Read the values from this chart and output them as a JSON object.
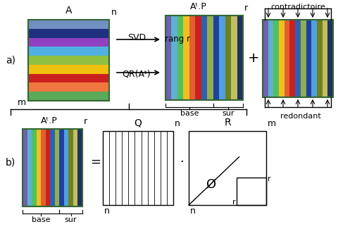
{
  "bg_color": "#ffffff",
  "matrix_A_colors": [
    "#5aaa5a",
    "#f07840",
    "#cc2020",
    "#f0c010",
    "#90c040",
    "#50b0e0",
    "#9040c0",
    "#203080",
    "#7090c0"
  ],
  "col_colors_AtP": [
    "#7060b0",
    "#60b0d0",
    "#50c060",
    "#f0c020",
    "#e06030",
    "#cc2020",
    "#3060b0",
    "#90b050",
    "#2040a0",
    "#50a0e0",
    "#708020",
    "#c0c060",
    "#203060"
  ],
  "col_colors_plus": [
    "#7060b0",
    "#60b0d0",
    "#50c060",
    "#f0c020",
    "#e06030",
    "#cc2020",
    "#3060b0",
    "#90b050",
    "#2040a0",
    "#50a0e0",
    "#708020",
    "#c0c060",
    "#203060"
  ],
  "title_a_label": "A",
  "title_n_label": "n",
  "title_m_label": "m",
  "atP_label": "Aᵗ.P",
  "r_label": "r",
  "q_label": "Q",
  "r_mat_label": "R",
  "m_label": "m",
  "n_label": "n",
  "base_label": "base",
  "sur_label": "sur",
  "contradictoire_label": "contradictoire",
  "redondant_label": "redondant",
  "svd_label": "SVD",
  "rang_r_label": "rang r",
  "qr_label": "QR(Aᵗ)",
  "plus_label": "+",
  "eq_label": "=",
  "dot_label": "⋅",
  "phi_label": "Ø",
  "a_label": "a)",
  "b_label": "b)"
}
